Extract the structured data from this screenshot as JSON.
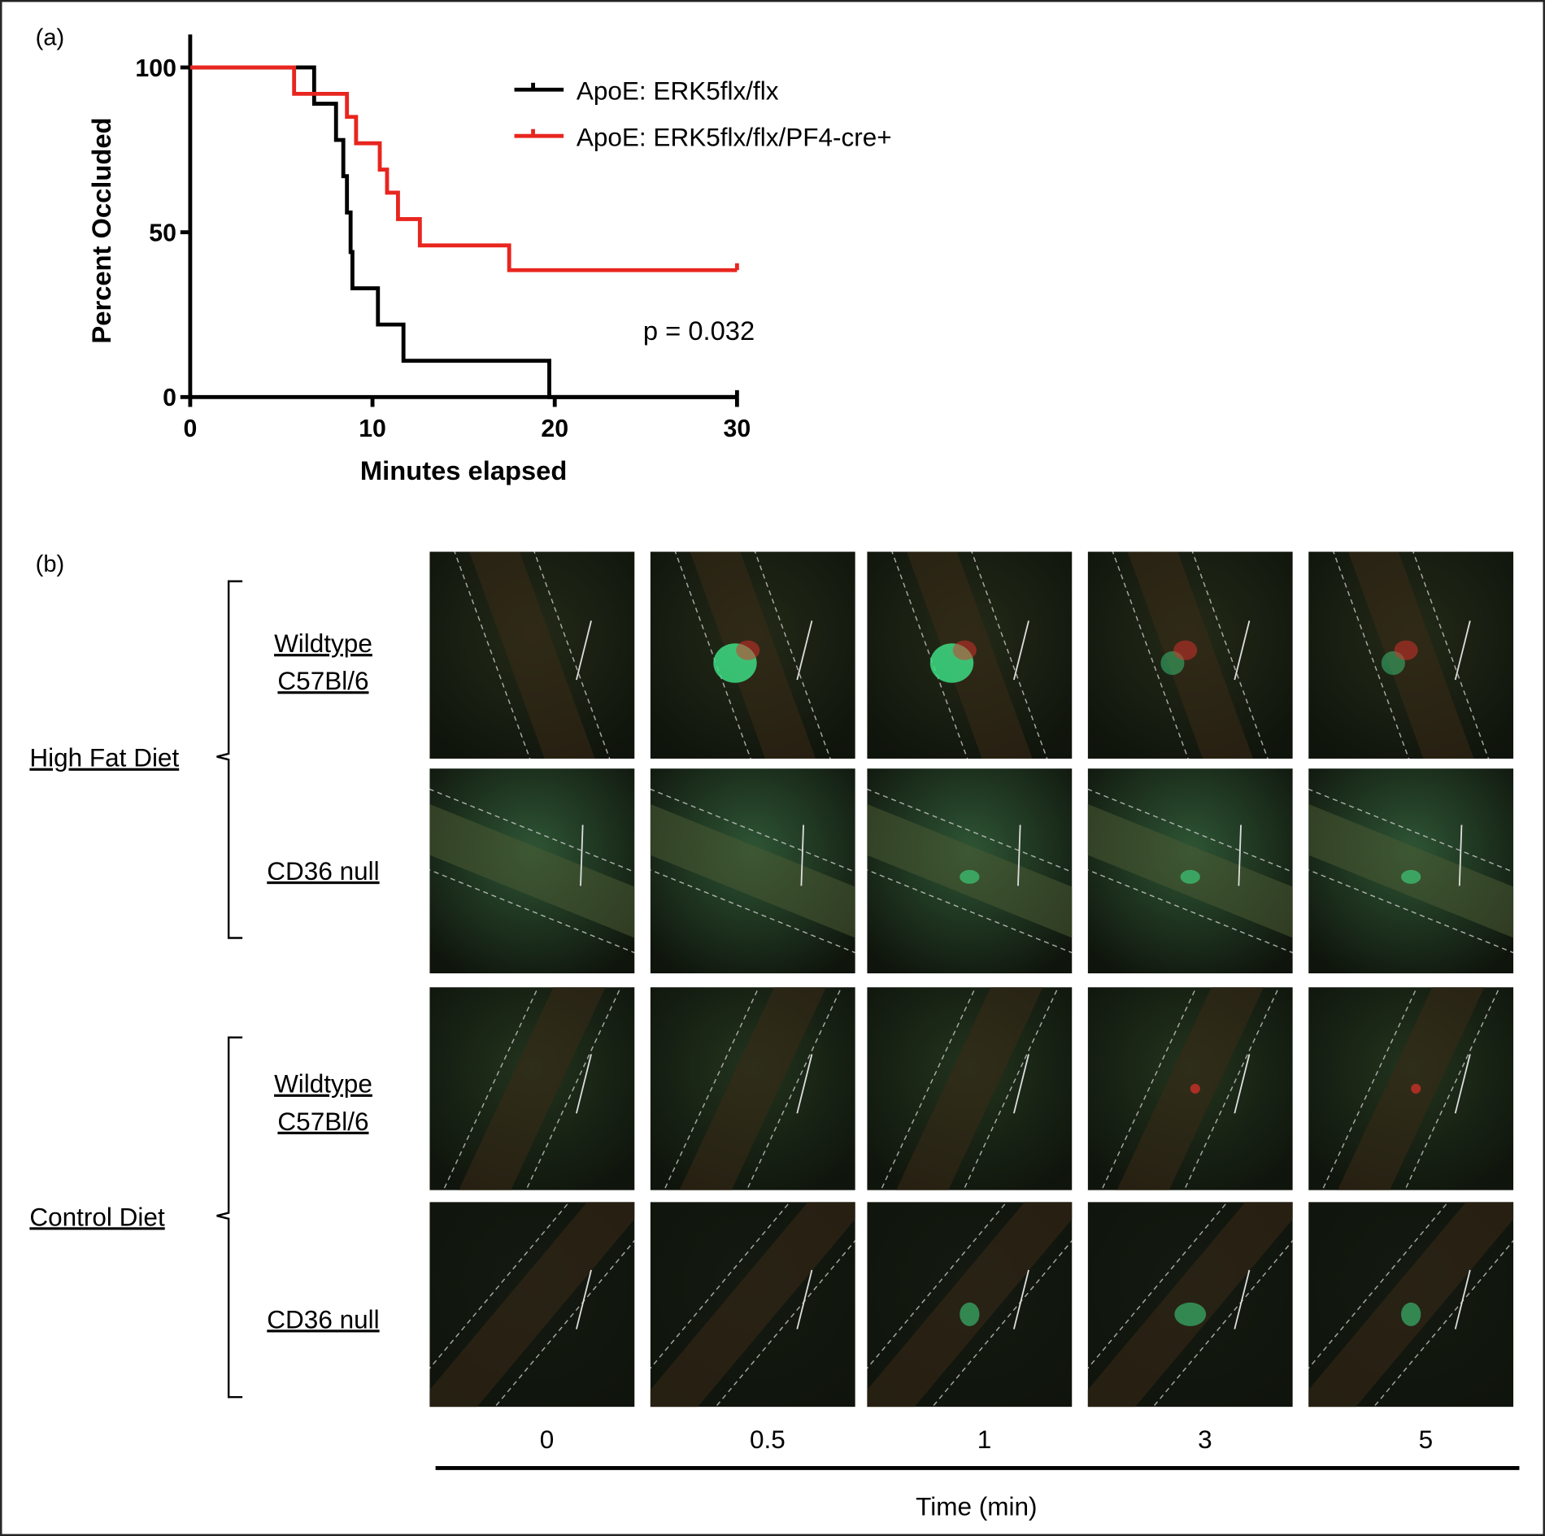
{
  "chart_data": {
    "type": "step",
    "panel_label": "(a)",
    "xlabel": "Minutes elapsed",
    "ylabel": "Percent Occluded",
    "annotation": "p = 0.032",
    "xlim": [
      0,
      30
    ],
    "ylim": [
      0,
      110
    ],
    "xticks": [
      0,
      10,
      20,
      30
    ],
    "yticks": [
      0,
      50,
      100
    ],
    "legend": "upper right",
    "series": [
      {
        "name": "ApoE: ERK5flx/flx",
        "color": "#000000",
        "x": [
          0,
          6.8,
          8.0,
          8.4,
          8.6,
          8.8,
          8.9,
          10.3,
          11.7,
          19.7,
          30
        ],
        "values": [
          100,
          89,
          78,
          67,
          56,
          44,
          33,
          22,
          11,
          0,
          0
        ]
      },
      {
        "name": "ApoE: ERK5flx/flx/PF4-cre+",
        "color": "#e8251f",
        "x": [
          0,
          5.7,
          8.6,
          9.1,
          10.4,
          10.8,
          11.4,
          12.6,
          17.5,
          30
        ],
        "values": [
          100,
          92,
          85,
          77,
          69,
          62,
          54,
          46,
          38.5,
          38.5
        ]
      }
    ]
  },
  "panel_b": {
    "label": "(b)",
    "groups": [
      {
        "diet": "High Fat Diet",
        "rows": [
          [
            "Wildtype",
            "C57Bl/6"
          ],
          [
            "CD36 null"
          ]
        ]
      },
      {
        "diet": "Control Diet",
        "rows": [
          [
            "Wildtype",
            "C57Bl/6"
          ],
          [
            "CD36 null"
          ]
        ]
      }
    ],
    "time_points": [
      "0",
      "0.5",
      "1",
      "3",
      "5"
    ],
    "time_label": "Time (min)"
  }
}
